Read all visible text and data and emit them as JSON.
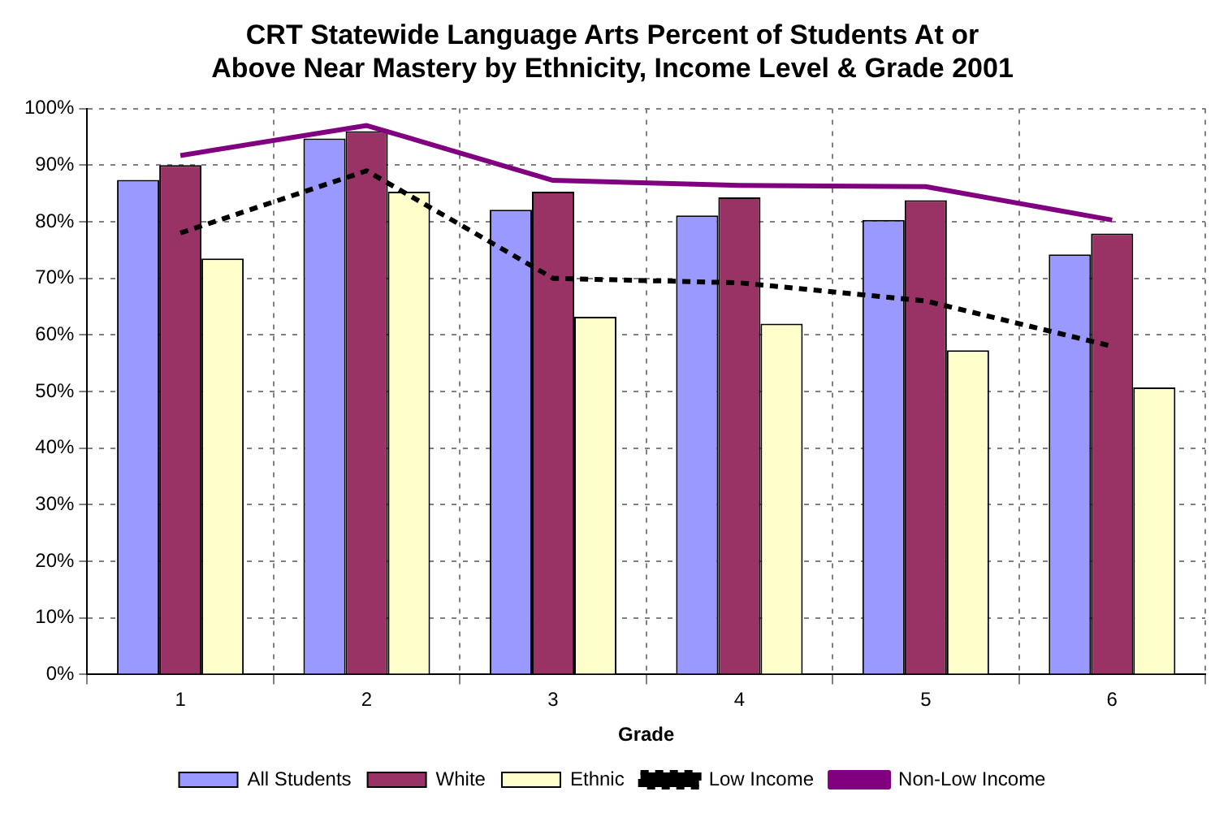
{
  "chart_data": {
    "type": "bar",
    "title": "CRT Statewide Language Arts Percent of Students At or Above Near Mastery by Ethnicity, Income Level & Grade 2001",
    "xlabel": "Grade",
    "categories": [
      "1",
      "2",
      "3",
      "4",
      "5",
      "6"
    ],
    "series": [
      {
        "name": "All Students",
        "color": "#9999ff",
        "values": [
          87.4,
          94.7,
          82.1,
          81.1,
          80.3,
          74.2
        ]
      },
      {
        "name": "White",
        "color": "#993366",
        "values": [
          90,
          96,
          85.3,
          84.3,
          83.8,
          77.9
        ]
      },
      {
        "name": "Ethnic",
        "color": "#ffffcc",
        "values": [
          73.5,
          85.3,
          63.2,
          62,
          57.3,
          50.7
        ]
      },
      {
        "name": "Low Income",
        "type": "line",
        "color": "#000000",
        "line_style": "dashed",
        "values": [
          78,
          89,
          70,
          69.2,
          66,
          58
        ]
      },
      {
        "name": "Non-Low Income",
        "type": "line",
        "color": "#800080",
        "line_style": "solid",
        "values": [
          91.7,
          97,
          87.3,
          86.4,
          86.2,
          80.3
        ]
      }
    ],
    "ylim": [
      0,
      100
    ],
    "yticks": [
      {
        "value": 0,
        "label": "0%"
      },
      {
        "value": 10,
        "label": "10%"
      },
      {
        "value": 20,
        "label": "20%"
      },
      {
        "value": 30,
        "label": "30%"
      },
      {
        "value": 40,
        "label": "40%"
      },
      {
        "value": 50,
        "label": "50%"
      },
      {
        "value": 60,
        "label": "60%"
      },
      {
        "value": 70,
        "label": "70%"
      },
      {
        "value": 80,
        "label": "80%"
      },
      {
        "value": 90,
        "label": "90%"
      },
      {
        "value": 100,
        "label": "100%"
      }
    ],
    "grid": true,
    "legend": "bottom",
    "marker": "none"
  }
}
